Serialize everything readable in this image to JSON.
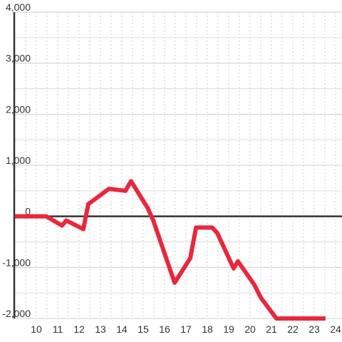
{
  "chart_data": {
    "type": "line",
    "x": [
      9.0,
      10.47,
      11.2,
      11.4,
      12.2,
      12.43,
      13.4,
      14.17,
      14.43,
      15.2,
      15.47,
      16.47,
      17.2,
      17.47,
      18.23,
      18.47,
      19.23,
      19.43,
      20.2,
      20.5,
      21.23,
      23.53
    ],
    "series": [
      {
        "color": "#e8283c",
        "values": [
          0,
          0,
          -180,
          -80,
          -250,
          240,
          540,
          500,
          690,
          170,
          -80,
          -1300,
          -820,
          -220,
          -220,
          -330,
          -1020,
          -880,
          -1340,
          -1590,
          -2000,
          -2000
        ]
      }
    ],
    "xlim": [
      9,
      24.3
    ],
    "xticks": [
      10,
      11,
      12,
      13,
      14,
      15,
      16,
      17,
      18,
      19,
      20,
      21,
      22,
      23,
      24
    ],
    "minor_xticks": [
      9.5,
      10.5,
      11.5,
      12.5,
      13.5,
      14.5,
      15.5,
      16.5,
      17.5,
      18.5,
      19.5,
      20.5,
      21.5,
      22.5,
      23.5
    ],
    "ylim": [
      -2000,
      4000
    ],
    "yticks": [
      {
        "value": -2000,
        "label": "-2,000"
      },
      {
        "value": -1000,
        "label": "-1,000"
      },
      0,
      {
        "value": 1000,
        "label": "1,000"
      },
      {
        "value": 2000,
        "label": "2,000"
      },
      {
        "value": 3000,
        "label": "3,000"
      },
      {
        "value": 4000,
        "label": "4,000"
      }
    ],
    "minor_yticks": [
      -1500,
      -500,
      500,
      1500,
      2500,
      3500
    ],
    "grid": true
  }
}
